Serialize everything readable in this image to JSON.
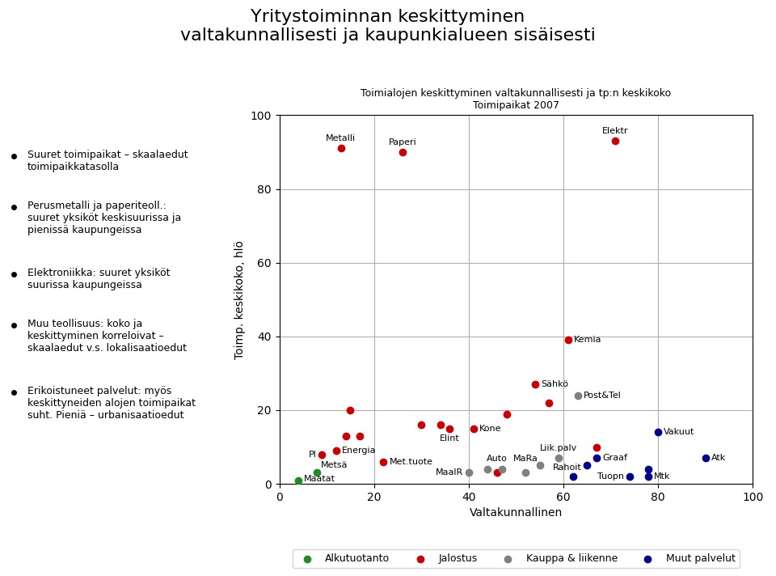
{
  "chart_data": {
    "type": "scatter",
    "title": "Yritystoiminnan keskittyminen\nvaltakunnallisesti ja kaupunkialueen sisäisesti",
    "subtitle": "Toimialojen keskittyminen valtakunnallisesti ja tp:n keskikoko\nToimipaikat 2007",
    "xlabel": "Valtakunnallinen",
    "ylabel": "Toimp. keskikoko, hlö",
    "xlim": [
      0,
      100
    ],
    "ylim": [
      0,
      100
    ],
    "xticks": [
      0,
      20,
      40,
      60,
      80,
      100
    ],
    "yticks": [
      0,
      20,
      40,
      60,
      80,
      100
    ],
    "grid": true,
    "legend": "lower center",
    "series": [
      {
        "name": "Alkutuotanto",
        "color": "#228B22",
        "x": [
          8,
          4
        ],
        "y": [
          3,
          1
        ],
        "labels": [
          "Metsä",
          "Maatat"
        ]
      },
      {
        "name": "Jalostus",
        "color": "#cc0000",
        "x": [
          13,
          26,
          71,
          61,
          54,
          41,
          36,
          22,
          12,
          9,
          14,
          17,
          30,
          34,
          48,
          57,
          15,
          67,
          46
        ],
        "y": [
          91,
          90,
          93,
          39,
          27,
          15,
          15,
          6,
          9,
          8,
          13,
          13,
          16,
          16,
          19,
          22,
          20,
          10,
          3
        ],
        "labels": [
          "Metalli",
          "Paperi",
          "Elektr",
          "Kemia",
          "Sähkö",
          "Kone",
          "Elint",
          "Met.tuote",
          "Energia",
          "Pl",
          null,
          null,
          null,
          null,
          null,
          null,
          null,
          null,
          "Auto"
        ]
      },
      {
        "name": "Kauppa & liikenne",
        "color": "#808080",
        "x": [
          63,
          59,
          52,
          40,
          44,
          47,
          55
        ],
        "y": [
          24,
          7,
          3,
          3,
          4,
          4,
          5
        ],
        "labels": [
          "Post&Tel",
          "Liik.palv",
          "MaRa",
          "MaalR",
          null,
          null,
          null
        ]
      },
      {
        "name": "Muut palvelut",
        "color": "#00008B",
        "x": [
          80,
          90,
          67,
          65,
          74,
          78,
          62,
          78
        ],
        "y": [
          14,
          7,
          7,
          5,
          2,
          4,
          2,
          2
        ],
        "labels": [
          "Vakuut",
          "Atk",
          "Graaf",
          "Rahoit",
          "Tuopn",
          null,
          null,
          "Mtk"
        ]
      }
    ],
    "annotations": [
      "Suuret toimipaikat – skaalaedut\ntoimipaikkatasolla",
      "Perusmetalli ja paperiteoll.:\nsuuret yksiköt keskisuurissa ja\npienissä kaupungeissa",
      "Elektroniikka: suuret yksiköt\nsuurissa kaupungeissa",
      "Muu teollisuus: koko ja\nkeskittyminen korreloivat –\nskaalaedut v.s. lokalisaatioedut",
      "Erikoistuneet palvelut: myös\nkeskittyneiden alojen toimipaikat\nsuht. Pieniä – urbanisaatioedut"
    ]
  }
}
